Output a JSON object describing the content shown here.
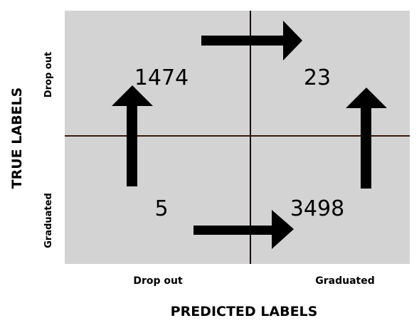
{
  "axes": {
    "y_title": "TRUE LABELS",
    "x_title": "PREDICTED LABELS",
    "row_labels": [
      "Drop out",
      "Graduated"
    ],
    "col_labels": [
      "Drop out",
      "Graduated"
    ]
  },
  "matrix": {
    "cells": [
      [
        "1474",
        "23"
      ],
      [
        "5",
        "3498"
      ]
    ]
  },
  "arrows": [
    {
      "name": "arrow-top-right",
      "direction": "right"
    },
    {
      "name": "arrow-bottom-right",
      "direction": "right"
    },
    {
      "name": "arrow-left-up",
      "direction": "up"
    },
    {
      "name": "arrow-right-up",
      "direction": "up"
    }
  ],
  "colors": {
    "background": "#d3d3d3",
    "divider": "#3a1a0a",
    "arrow": "#000000"
  }
}
